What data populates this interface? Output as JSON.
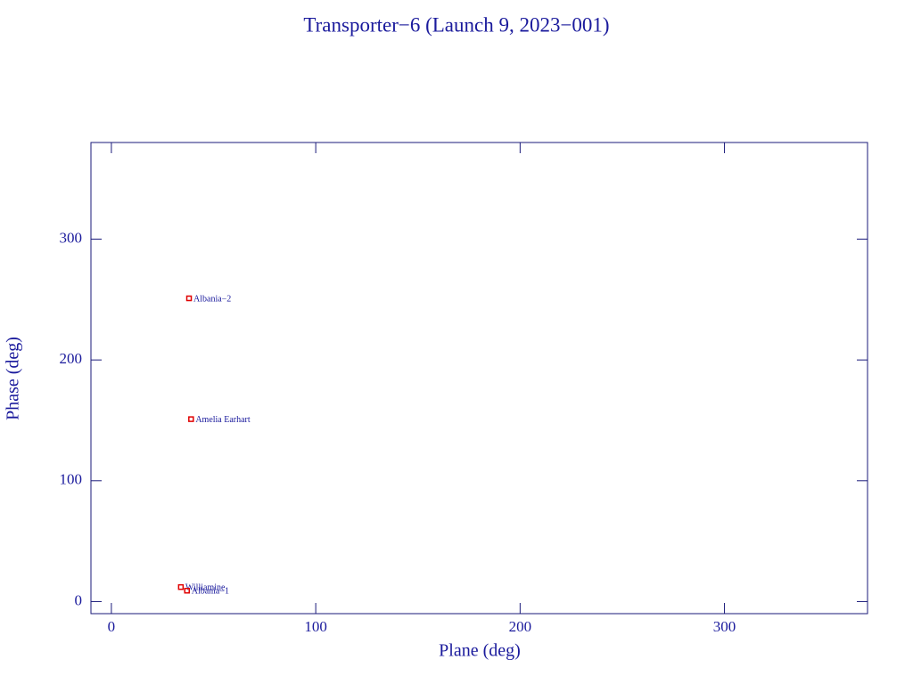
{
  "chart_data": {
    "type": "scatter",
    "title": "Transporter−6 (Launch 9, 2023−001)",
    "x_label": "Plane (deg)",
    "y_label": "Phase (deg)",
    "x": [
      38,
      39,
      34,
      37
    ],
    "values": [
      251,
      151,
      12,
      9
    ],
    "labels": [
      "Albania−2",
      "Amelia Earhart",
      "Williamine",
      "Albania−1"
    ],
    "color": "#e00000",
    "xlim": [
      -10,
      370
    ],
    "ylim": [
      -10,
      380
    ],
    "xticks": [
      0,
      100,
      200,
      300
    ],
    "yticks": [
      0,
      100,
      200,
      300
    ],
    "grid": false
  }
}
